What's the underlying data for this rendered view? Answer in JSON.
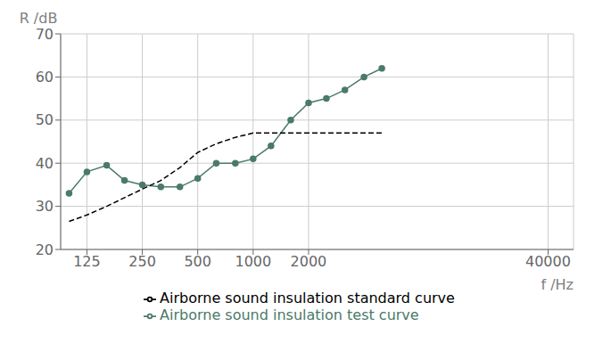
{
  "chart_data": {
    "type": "line",
    "x": [
      100,
      125,
      160,
      200,
      250,
      315,
      400,
      500,
      630,
      800,
      1000,
      1250,
      1600,
      2000,
      2500,
      3150,
      4000,
      5000
    ],
    "series": [
      {
        "name": "Airborne sound insulation test curve",
        "color": "#4a7a6a",
        "marker": "circle",
        "line_style": "solid",
        "values": [
          33,
          38,
          39.5,
          36,
          35,
          34.5,
          34.5,
          36.5,
          40,
          40,
          41,
          44,
          50,
          54,
          55,
          57,
          60,
          62
        ]
      },
      {
        "name": "Airborne sound insulation standard curve",
        "color": "#000000",
        "marker": "none",
        "line_style": "dashed",
        "values": [
          26.5,
          28,
          30,
          32,
          34,
          36,
          39,
          42.5,
          44.5,
          46,
          47,
          47,
          47,
          47,
          47,
          47,
          47,
          47
        ]
      }
    ],
    "x_label": "f /Hz",
    "y_label": "R /dB",
    "xlim": [
      90,
      55000
    ],
    "ylim": [
      20,
      70
    ],
    "xticks": [
      125,
      250,
      500,
      1000,
      2000,
      40000
    ],
    "yticks": [
      20,
      30,
      40,
      50,
      60,
      70
    ],
    "log": "x",
    "grid": true,
    "legend": "bottom"
  }
}
